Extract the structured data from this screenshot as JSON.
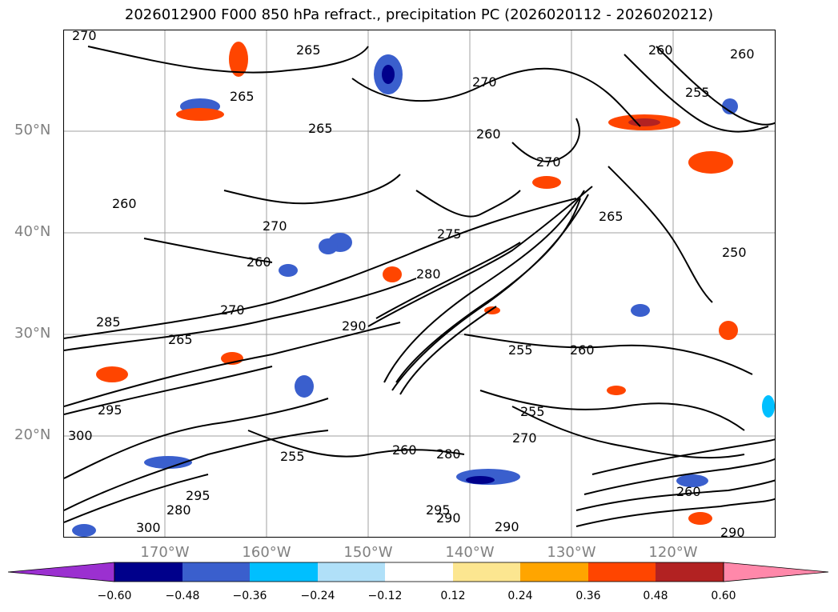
{
  "title": "2026012900 F000 850 hPa refract., precipitation PC (2026020112 - 2026020212)",
  "lat_labels": [
    "50°N",
    "40°N",
    "30°N",
    "20°N"
  ],
  "lon_labels": [
    "170°W",
    "160°W",
    "150°W",
    "140°W",
    "130°W",
    "120°W"
  ],
  "colorbar": {
    "ticks": [
      "−0.60",
      "−0.48",
      "−0.36",
      "−0.24",
      "−0.12",
      "0.12",
      "0.24",
      "0.36",
      "0.48",
      "0.60"
    ],
    "colors": [
      "#9b30d0",
      "#00008b",
      "#3a5fcd",
      "#00bfff",
      "#b0e0f8",
      "#ffffff",
      "#fce690",
      "#ffa500",
      "#ff4500",
      "#b22222",
      "#ff88aa"
    ]
  },
  "contour_labels": [
    "270",
    "265",
    "265",
    "260",
    "260",
    "255",
    "270",
    "265",
    "270",
    "260",
    "275",
    "260",
    "270",
    "280",
    "290",
    "265",
    "295",
    "300",
    "295",
    "280",
    "300",
    "255",
    "260",
    "255",
    "270",
    "260",
    "280",
    "255",
    "260",
    "290",
    "295",
    "285",
    "290",
    "250",
    "270",
    "260",
    "290",
    "265"
  ],
  "legend": {}
}
